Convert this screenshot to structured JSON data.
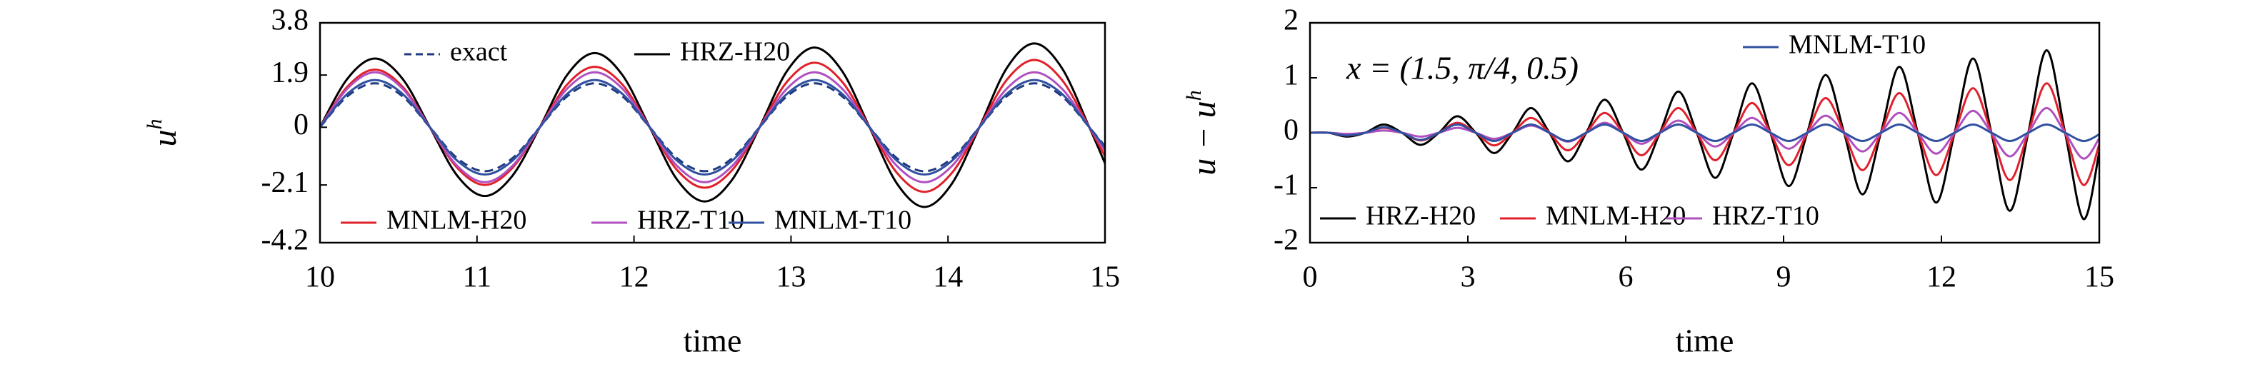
{
  "chart_data": [
    {
      "type": "line",
      "xlabel": "time",
      "ylabel": "u",
      "ylabel_superscript": "h",
      "xlim": [
        10,
        15
      ],
      "xticks": [
        10,
        11,
        12,
        13,
        14,
        15
      ],
      "ylim": [
        -4.2,
        3.8
      ],
      "yticks": [
        3.8,
        1.9,
        0,
        -2.1,
        -4.2
      ],
      "x": [
        10,
        10.175,
        10.35,
        10.525,
        10.7,
        10.875,
        11.05,
        11.225,
        11.4,
        11.575,
        11.75,
        11.925,
        12.1,
        12.275,
        12.45,
        12.625,
        12.8,
        12.975,
        13.15,
        13.325,
        13.5,
        13.675,
        13.85,
        14.025,
        14.2,
        14.375,
        14.55,
        14.725,
        14.9,
        15
      ],
      "series": [
        {
          "name": "exact",
          "color": "#1f3a80",
          "dashed": true,
          "values": [
            0,
            1.13,
            1.6,
            1.13,
            0,
            -1.13,
            -1.6,
            -1.13,
            0,
            1.13,
            1.6,
            1.13,
            0,
            -1.13,
            -1.6,
            -1.13,
            0,
            1.13,
            1.6,
            1.13,
            0,
            -1.13,
            -1.6,
            -1.13,
            0,
            1.13,
            1.6,
            1.13,
            0,
            -0.69
          ]
        },
        {
          "name": "HRZ-H20",
          "color": "#000000",
          "values": [
            0,
            1.77,
            2.5,
            1.77,
            0,
            -1.77,
            -2.5,
            -1.77,
            0,
            1.91,
            2.7,
            1.91,
            0,
            -1.91,
            -2.7,
            -1.91,
            0,
            2.05,
            2.9,
            2.05,
            0,
            -2.05,
            -2.9,
            -2.05,
            0,
            2.16,
            3.05,
            2.16,
            0,
            -1.31
          ]
        },
        {
          "name": "MNLM-H20",
          "color": "#e0202a",
          "values": [
            0,
            1.48,
            2.1,
            1.48,
            0,
            -1.48,
            -2.1,
            -1.48,
            0,
            1.56,
            2.2,
            1.56,
            0,
            -1.56,
            -2.2,
            -1.56,
            0,
            1.66,
            2.35,
            1.66,
            0,
            -1.66,
            -2.35,
            -1.66,
            0,
            1.73,
            2.45,
            1.73,
            0,
            -1.05
          ]
        },
        {
          "name": "HRZ-T10",
          "color": "#b050c0",
          "values": [
            0,
            1.41,
            2,
            1.41,
            0,
            -1.41,
            -2,
            -1.41,
            0,
            1.41,
            2,
            1.41,
            0,
            -1.41,
            -2,
            -1.41,
            0,
            1.41,
            2,
            1.41,
            0,
            -1.41,
            -2,
            -1.41,
            0,
            1.41,
            2,
            1.41,
            0,
            -0.86
          ]
        },
        {
          "name": "MNLM-T10",
          "color": "#3050a0",
          "values": [
            0,
            1.22,
            1.72,
            1.22,
            0,
            -1.22,
            -1.72,
            -1.22,
            0,
            1.22,
            1.72,
            1.22,
            0,
            -1.22,
            -1.72,
            -1.22,
            0,
            1.22,
            1.72,
            1.22,
            0,
            -1.22,
            -1.72,
            -1.22,
            0,
            1.22,
            1.72,
            1.22,
            0,
            -0.74
          ]
        }
      ]
    },
    {
      "type": "line",
      "xlabel": "time",
      "ylabel": "u − u",
      "ylabel_superscript": "h",
      "annotation": "x = (1.5, π/4, 0.5)",
      "xlim": [
        0,
        15
      ],
      "xticks": [
        0,
        3,
        6,
        9,
        12,
        15
      ],
      "ylim": [
        -2,
        2
      ],
      "yticks": [
        2,
        1,
        0,
        -1,
        -2
      ],
      "x": [
        0,
        0.35,
        0.7,
        1.05,
        1.4,
        1.75,
        2.1,
        2.45,
        2.8,
        3.15,
        3.5,
        3.85,
        4.2,
        4.55,
        4.9,
        5.25,
        5.6,
        5.95,
        6.3,
        6.65,
        7,
        7.35,
        7.7,
        8.05,
        8.4,
        8.75,
        9.1,
        9.45,
        9.8,
        10.15,
        10.5,
        10.85,
        11.2,
        11.55,
        11.9,
        12.25,
        12.6,
        12.95,
        13.3,
        13.65,
        14,
        14.35,
        14.7,
        15
      ],
      "series": [
        {
          "name": "HRZ-H20",
          "color": "#000000",
          "values": [
            0,
            0,
            -0.07,
            0,
            0.15,
            0,
            -0.22,
            0,
            0.3,
            0,
            -0.37,
            0,
            0.45,
            0,
            -0.52,
            0,
            0.6,
            0,
            -0.67,
            0,
            0.75,
            0,
            -0.82,
            0,
            0.9,
            0,
            -0.97,
            0,
            1.05,
            0,
            -1.12,
            0,
            1.2,
            0,
            -1.27,
            0,
            1.35,
            0,
            -1.42,
            0,
            1.5,
            0,
            -1.57,
            -0.35
          ]
        },
        {
          "name": "MNLM-H20",
          "color": "#e0202a",
          "values": [
            0,
            0,
            -0.05,
            0,
            0.09,
            0,
            -0.14,
            0,
            0.18,
            0,
            -0.23,
            0,
            0.27,
            0,
            -0.32,
            0,
            0.36,
            0,
            -0.41,
            0,
            0.45,
            0,
            -0.5,
            0,
            0.54,
            0,
            -0.59,
            0,
            0.63,
            0,
            -0.68,
            0,
            0.72,
            0,
            -0.77,
            0,
            0.81,
            0,
            -0.86,
            0,
            0.9,
            0,
            -0.95,
            -0.21
          ]
        },
        {
          "name": "HRZ-T10",
          "color": "#b050c0",
          "values": [
            0,
            0,
            -0.02,
            0,
            0.04,
            0,
            -0.07,
            0,
            0.09,
            0,
            -0.11,
            0,
            0.13,
            0,
            -0.16,
            0,
            0.18,
            0,
            -0.2,
            0,
            0.22,
            0,
            -0.25,
            0,
            0.27,
            0,
            -0.29,
            0,
            0.31,
            0,
            -0.34,
            0,
            0.36,
            0,
            -0.38,
            0,
            0.4,
            0,
            -0.43,
            0,
            0.45,
            0,
            -0.47,
            -0.1
          ]
        },
        {
          "name": "MNLM-T10",
          "color": "#3050a0",
          "values": [
            0,
            0,
            -0.05,
            0,
            0.1,
            0,
            -0.13,
            0,
            0.15,
            0,
            -0.15,
            0,
            0.15,
            0,
            -0.15,
            0,
            0.15,
            0,
            -0.15,
            0,
            0.15,
            0,
            -0.15,
            0,
            0.15,
            0,
            -0.15,
            0,
            0.15,
            0,
            -0.15,
            0,
            0.15,
            0,
            -0.15,
            0,
            0.15,
            0,
            -0.15,
            0,
            0.15,
            0,
            -0.15,
            -0.03
          ]
        }
      ]
    }
  ]
}
